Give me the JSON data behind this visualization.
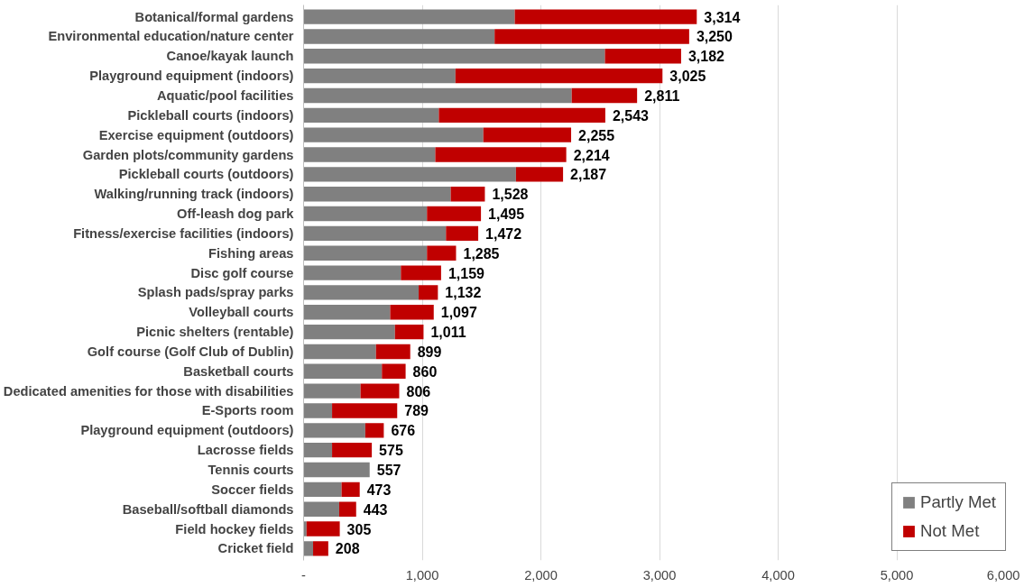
{
  "chart_data": {
    "type": "bar",
    "orientation": "horizontal",
    "stacked": true,
    "categories": [
      "Botanical/formal gardens",
      "Environmental education/nature center",
      "Canoe/kayak launch",
      "Playground equipment (indoors)",
      "Aquatic/pool facilities",
      "Pickleball courts (indoors)",
      "Exercise equipment (outdoors)",
      "Garden plots/community gardens",
      "Pickleball courts (outdoors)",
      "Walking/running track (indoors)",
      "Off-leash dog park",
      "Fitness/exercise facilities (indoors)",
      "Fishing areas",
      "Disc golf course",
      "Splash pads/spray parks",
      "Volleyball courts",
      "Picnic shelters (rentable)",
      "Golf course (Golf Club of Dublin)",
      "Basketball courts",
      "Dedicated amenities for those with disabilities",
      "E-Sports room",
      "Playground equipment (outdoors)",
      "Lacrosse fields",
      "Tennis courts",
      "Soccer fields",
      "Baseball/softball diamonds",
      "Field hockey fields",
      "Cricket field"
    ],
    "series": [
      {
        "name": "Partly Met",
        "color": "#808080",
        "values": [
          1780,
          1610,
          2540,
          1280,
          2260,
          1140,
          1515,
          1110,
          1790,
          1240,
          1040,
          1200,
          1040,
          820,
          970,
          730,
          770,
          610,
          660,
          480,
          240,
          520,
          240,
          557,
          320,
          300,
          25,
          80
        ]
      },
      {
        "name": "Not Met",
        "color": "#c00000",
        "values": [
          1534,
          1640,
          642,
          1745,
          551,
          1403,
          740,
          1104,
          397,
          288,
          455,
          272,
          245,
          339,
          162,
          367,
          241,
          289,
          200,
          326,
          549,
          156,
          335,
          0,
          153,
          143,
          280,
          128
        ]
      }
    ],
    "totals": [
      "3,314",
      "3,250",
      "3,182",
      "3,025",
      "2,811",
      "2,543",
      "2,255",
      "2,214",
      "2,187",
      "1,528",
      "1,495",
      "1,472",
      "1,285",
      "1,159",
      "1,132",
      "1,097",
      "1,011",
      "899",
      "860",
      "806",
      "789",
      "676",
      "575",
      "557",
      "473",
      "443",
      "305",
      "208"
    ],
    "xlim": [
      0,
      6000
    ],
    "xticks": [
      {
        "value": 0,
        "label": "-"
      },
      {
        "value": 1000,
        "label": "1,000"
      },
      {
        "value": 2000,
        "label": "2,000"
      },
      {
        "value": 3000,
        "label": "3,000"
      },
      {
        "value": 4000,
        "label": "4,000"
      },
      {
        "value": 5000,
        "label": "5,000"
      },
      {
        "value": 6000,
        "label": "6,000"
      }
    ],
    "grid": "x",
    "legend": "bottom right"
  }
}
